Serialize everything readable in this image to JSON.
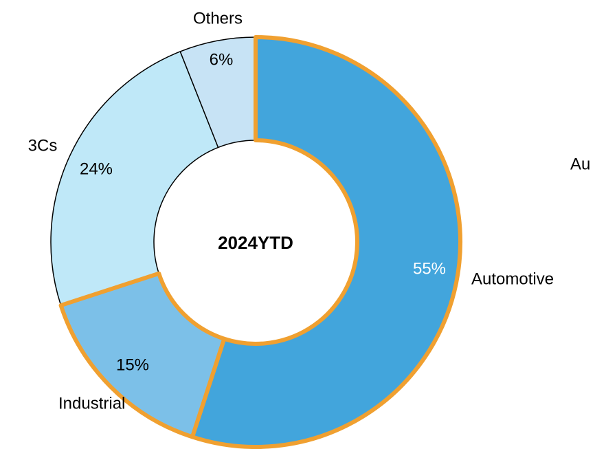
{
  "chart_data": {
    "type": "donut",
    "center_label": "2024YTD",
    "categories": [
      "Automotive",
      "Industrial",
      "3Cs",
      "Others"
    ],
    "values": [
      55,
      15,
      24,
      6
    ],
    "value_labels": [
      "55%",
      "15%",
      "24%",
      "6%"
    ],
    "colors": [
      "#42a5dc",
      "#7cc0e8",
      "#bfe8f8",
      "#c7e3f5"
    ],
    "edgecolors": [
      "#f0a030",
      "#f0a030",
      "#000000",
      "#000000"
    ],
    "annotations": [
      "Au"
    ]
  }
}
